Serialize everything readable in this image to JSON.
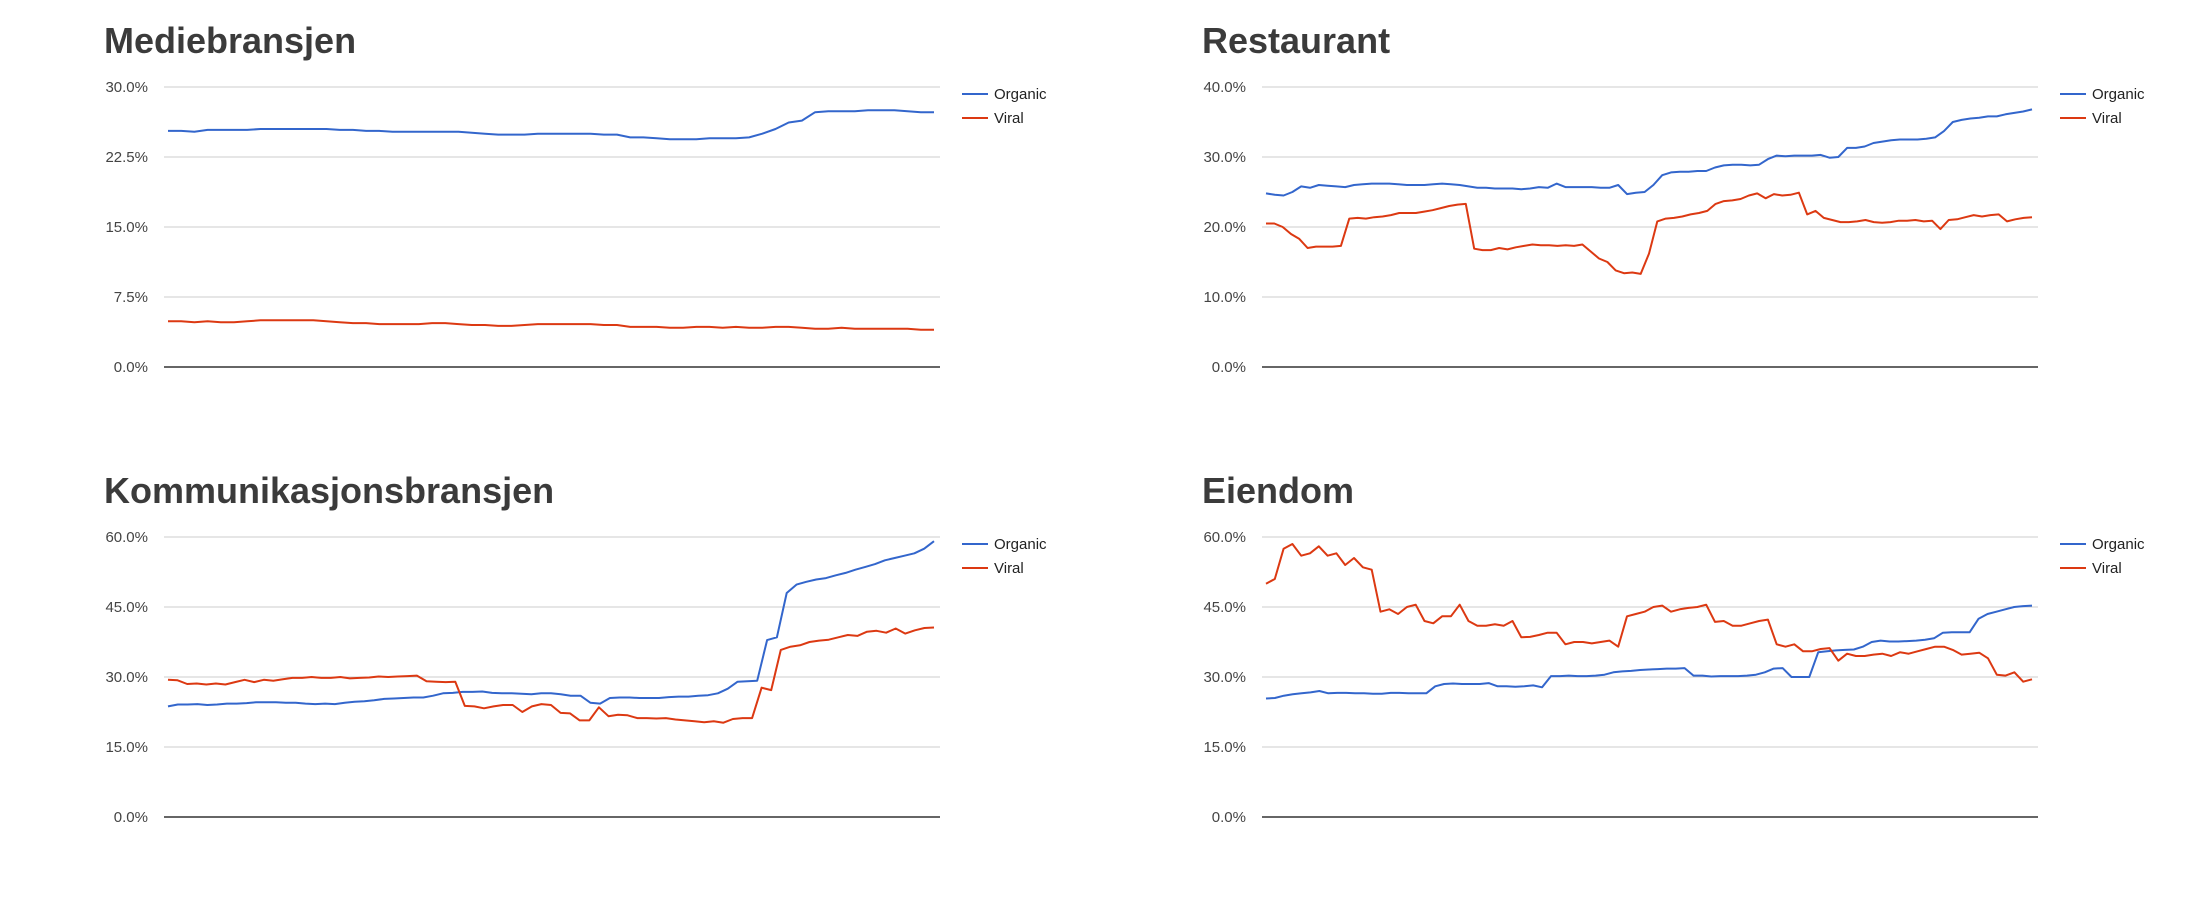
{
  "colors": {
    "organic": "#3366cc",
    "viral": "#dc3912",
    "grid": "#cccccc",
    "baseline": "#333333"
  },
  "chart_data": [
    {
      "type": "line",
      "title": "Mediebransjen",
      "ylim": [
        0,
        30
      ],
      "yticks": [
        "0.0%",
        "7.5%",
        "15.0%",
        "22.5%",
        "30.0%"
      ],
      "grid": true,
      "legend": "right",
      "series": [
        {
          "name": "Organic",
          "values": [
            25.3,
            25.3,
            25.2,
            25.4,
            25.4,
            25.4,
            25.4,
            25.5,
            25.5,
            25.5,
            25.5,
            25.5,
            25.5,
            25.4,
            25.4,
            25.3,
            25.3,
            25.2,
            25.2,
            25.2,
            25.2,
            25.2,
            25.2,
            25.1,
            25.0,
            24.9,
            24.9,
            24.9,
            25.0,
            25.0,
            25.0,
            25.0,
            25.0,
            24.9,
            24.9,
            24.6,
            24.6,
            24.5,
            24.4,
            24.4,
            24.4,
            24.5,
            24.5,
            24.5,
            24.6,
            25.0,
            25.5,
            26.2,
            26.4,
            27.3,
            27.4,
            27.4,
            27.4,
            27.5,
            27.5,
            27.5,
            27.4,
            27.3,
            27.3
          ]
        },
        {
          "name": "Viral",
          "values": [
            4.9,
            4.9,
            4.8,
            4.9,
            4.8,
            4.8,
            4.9,
            5.0,
            5.0,
            5.0,
            5.0,
            5.0,
            4.9,
            4.8,
            4.7,
            4.7,
            4.6,
            4.6,
            4.6,
            4.6,
            4.7,
            4.7,
            4.6,
            4.5,
            4.5,
            4.4,
            4.4,
            4.5,
            4.6,
            4.6,
            4.6,
            4.6,
            4.6,
            4.5,
            4.5,
            4.3,
            4.3,
            4.3,
            4.2,
            4.2,
            4.3,
            4.3,
            4.2,
            4.3,
            4.2,
            4.2,
            4.3,
            4.3,
            4.2,
            4.1,
            4.1,
            4.2,
            4.1,
            4.1,
            4.1,
            4.1,
            4.1,
            4.0,
            4.0
          ]
        }
      ]
    },
    {
      "type": "line",
      "title": "Restaurant",
      "ylim": [
        0,
        40
      ],
      "yticks": [
        "0.0%",
        "10.0%",
        "20.0%",
        "30.0%",
        "40.0%"
      ],
      "grid": true,
      "legend": "right",
      "series": [
        {
          "name": "Organic",
          "values": [
            24.8,
            24.6,
            24.5,
            25.0,
            25.8,
            25.6,
            26.0,
            25.9,
            25.8,
            25.7,
            26.0,
            26.1,
            26.2,
            26.2,
            26.2,
            26.1,
            26.0,
            26.0,
            26.0,
            26.1,
            26.2,
            26.1,
            26.0,
            25.8,
            25.6,
            25.6,
            25.5,
            25.5,
            25.5,
            25.4,
            25.5,
            25.7,
            25.6,
            26.2,
            25.7,
            25.7,
            25.7,
            25.7,
            25.6,
            25.6,
            26.0,
            24.7,
            24.9,
            25.0,
            26.0,
            27.4,
            27.8,
            27.9,
            27.9,
            28.0,
            28.0,
            28.5,
            28.8,
            28.9,
            28.9,
            28.8,
            28.9,
            29.7,
            30.2,
            30.1,
            30.2,
            30.2,
            30.2,
            30.3,
            29.9,
            30.0,
            31.3,
            31.3,
            31.5,
            32.0,
            32.2,
            32.4,
            32.5,
            32.5,
            32.5,
            32.6,
            32.8,
            33.7,
            35.0,
            35.3,
            35.5,
            35.6,
            35.8,
            35.8,
            36.1,
            36.3,
            36.5,
            36.8
          ]
        },
        {
          "name": "Viral",
          "values": [
            20.5,
            20.5,
            20.0,
            19.0,
            18.3,
            17.0,
            17.2,
            17.2,
            17.2,
            17.3,
            21.2,
            21.3,
            21.2,
            21.4,
            21.5,
            21.7,
            22.0,
            22.0,
            22.0,
            22.2,
            22.4,
            22.7,
            23.0,
            23.2,
            23.3,
            16.9,
            16.7,
            16.7,
            17.0,
            16.8,
            17.1,
            17.3,
            17.5,
            17.4,
            17.4,
            17.3,
            17.4,
            17.3,
            17.5,
            16.5,
            15.5,
            15.0,
            13.8,
            13.4,
            13.5,
            13.3,
            16.2,
            20.8,
            21.2,
            21.3,
            21.5,
            21.8,
            22.0,
            22.3,
            23.3,
            23.7,
            23.8,
            24.0,
            24.5,
            24.8,
            24.1,
            24.7,
            24.5,
            24.6,
            24.9,
            21.8,
            22.3,
            21.3,
            21.0,
            20.7,
            20.7,
            20.8,
            21.0,
            20.7,
            20.6,
            20.7,
            20.9,
            20.9,
            21.0,
            20.8,
            20.9,
            19.7,
            21.0,
            21.1,
            21.4,
            21.7,
            21.5,
            21.7,
            21.8,
            20.8,
            21.1,
            21.3,
            21.4
          ]
        }
      ]
    },
    {
      "type": "line",
      "title": "Kommunikasjonsbransjen",
      "ylim": [
        0,
        60
      ],
      "yticks": [
        "0.0%",
        "15.0%",
        "30.0%",
        "45.0%",
        "60.0%"
      ],
      "grid": true,
      "legend": "right",
      "series": [
        {
          "name": "Organic",
          "values": [
            23.7,
            24.1,
            24.1,
            24.2,
            24.0,
            24.1,
            24.3,
            24.3,
            24.4,
            24.6,
            24.6,
            24.6,
            24.5,
            24.5,
            24.3,
            24.2,
            24.3,
            24.2,
            24.5,
            24.7,
            24.8,
            25.0,
            25.3,
            25.4,
            25.5,
            25.6,
            25.6,
            26.0,
            26.5,
            26.6,
            26.8,
            26.8,
            26.9,
            26.6,
            26.5,
            26.5,
            26.4,
            26.3,
            26.5,
            26.5,
            26.3,
            26.0,
            26.0,
            24.5,
            24.3,
            25.5,
            25.6,
            25.6,
            25.5,
            25.5,
            25.5,
            25.7,
            25.8,
            25.8,
            26.0,
            26.1,
            26.5,
            27.5,
            29.0,
            29.1,
            29.2,
            37.9,
            38.5,
            48.0,
            49.8,
            50.4,
            50.9,
            51.2,
            51.8,
            52.3,
            53.0,
            53.6,
            54.2,
            55.0,
            55.5,
            56.0,
            56.5,
            57.5,
            59.1
          ]
        },
        {
          "name": "Viral",
          "values": [
            29.4,
            29.3,
            28.5,
            28.6,
            28.4,
            28.6,
            28.4,
            28.9,
            29.4,
            28.9,
            29.4,
            29.2,
            29.5,
            29.8,
            29.8,
            30.0,
            29.8,
            29.8,
            30.0,
            29.7,
            29.8,
            29.9,
            30.1,
            30.0,
            30.1,
            30.2,
            30.3,
            29.1,
            29.0,
            28.9,
            29.0,
            23.8,
            23.7,
            23.3,
            23.7,
            24.0,
            24.0,
            22.5,
            23.7,
            24.2,
            24.0,
            22.3,
            22.2,
            20.7,
            20.7,
            23.5,
            21.6,
            21.9,
            21.8,
            21.2,
            21.2,
            21.1,
            21.2,
            20.9,
            20.7,
            20.5,
            20.3,
            20.5,
            20.2,
            21.0,
            21.2,
            21.2,
            27.7,
            27.2,
            35.8,
            36.5,
            36.8,
            37.5,
            37.8,
            38.0,
            38.5,
            39.0,
            38.8,
            39.7,
            39.9,
            39.5,
            40.4,
            39.3,
            40.0,
            40.5,
            40.6
          ]
        }
      ]
    },
    {
      "type": "line",
      "title": "Eiendom",
      "ylim": [
        0,
        60
      ],
      "yticks": [
        "0.0%",
        "15.0%",
        "30.0%",
        "45.0%",
        "60.0%"
      ],
      "grid": true,
      "legend": "right",
      "series": [
        {
          "name": "Organic",
          "values": [
            25.4,
            25.5,
            26.0,
            26.3,
            26.5,
            26.7,
            27.0,
            26.5,
            26.6,
            26.6,
            26.5,
            26.5,
            26.4,
            26.4,
            26.6,
            26.6,
            26.5,
            26.5,
            26.5,
            28.0,
            28.5,
            28.6,
            28.5,
            28.5,
            28.5,
            28.7,
            28.0,
            28.0,
            27.9,
            28.0,
            28.2,
            27.8,
            30.2,
            30.2,
            30.3,
            30.2,
            30.2,
            30.3,
            30.5,
            31.0,
            31.2,
            31.3,
            31.5,
            31.6,
            31.7,
            31.8,
            31.8,
            31.9,
            30.3,
            30.3,
            30.1,
            30.2,
            30.2,
            30.2,
            30.3,
            30.5,
            31.0,
            31.8,
            31.9,
            30.0,
            30.0,
            30.0,
            35.3,
            35.5,
            35.7,
            35.8,
            35.9,
            36.5,
            37.5,
            37.8,
            37.6,
            37.6,
            37.7,
            37.8,
            38.0,
            38.3,
            39.5,
            39.6,
            39.6,
            39.6,
            42.5,
            43.5,
            44.0,
            44.5,
            45.0,
            45.2,
            45.3
          ]
        },
        {
          "name": "Viral",
          "values": [
            50.0,
            51.0,
            57.5,
            58.5,
            56.0,
            56.5,
            58.0,
            56.0,
            56.5,
            54.0,
            55.5,
            53.5,
            53.0,
            44.0,
            44.5,
            43.5,
            45.0,
            45.5,
            42.0,
            41.5,
            43.0,
            43.0,
            45.5,
            42.0,
            41.0,
            41.0,
            41.3,
            41.0,
            42.0,
            38.5,
            38.6,
            39.0,
            39.5,
            39.5,
            37.0,
            37.5,
            37.5,
            37.2,
            37.5,
            37.8,
            36.5,
            43.0,
            43.5,
            44.0,
            45.0,
            45.3,
            44.0,
            44.5,
            44.8,
            45.0,
            45.5,
            41.8,
            42.0,
            41.0,
            41.0,
            41.5,
            42.0,
            42.3,
            37.0,
            36.5,
            37.0,
            35.5,
            35.5,
            36.0,
            36.2,
            33.5,
            35.0,
            34.5,
            34.5,
            34.8,
            35.0,
            34.5,
            35.3,
            35.0,
            35.5,
            36.0,
            36.5,
            36.5,
            35.8,
            34.8,
            35.0,
            35.2,
            34.0,
            30.5,
            30.3,
            31.0,
            29.0,
            29.5
          ]
        }
      ]
    }
  ]
}
